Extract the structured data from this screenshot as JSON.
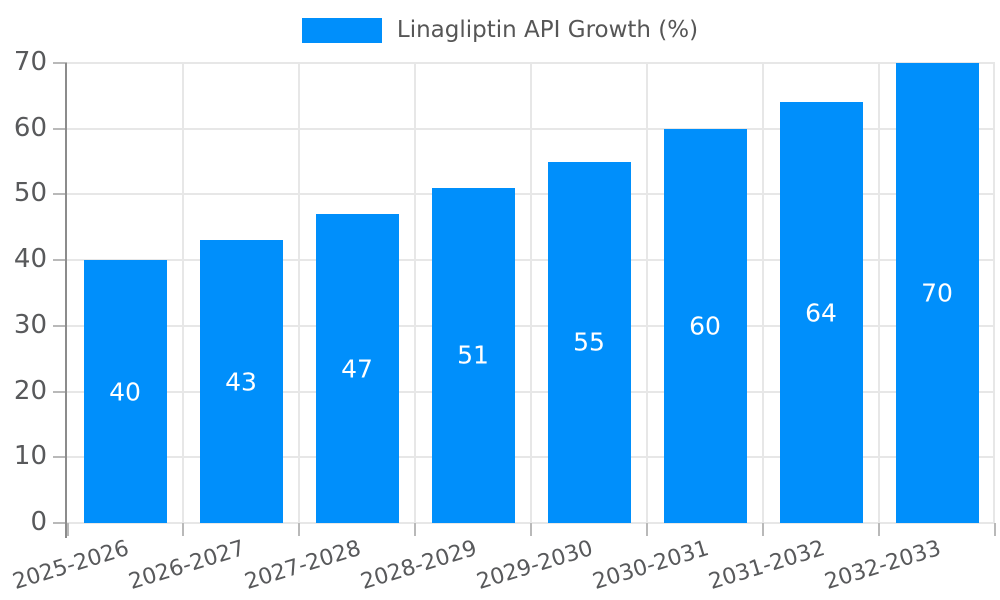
{
  "chart_data": {
    "type": "bar",
    "legend": "Linagliptin API Growth (%)",
    "legend_position": "top",
    "categories": [
      "2025-2026",
      "2026-2027",
      "2027-2028",
      "2028-2029",
      "2029-2030",
      "2030-2031",
      "2031-2032",
      "2032-2033"
    ],
    "values": [
      40,
      43,
      47,
      51,
      55,
      60,
      64,
      70
    ],
    "ylim": [
      0,
      70
    ],
    "yticks": [
      0,
      10,
      20,
      30,
      40,
      50,
      60,
      70
    ],
    "grid": true,
    "x_label_rotation_deg": -17,
    "colors": {
      "bar": "#008FFB",
      "grid": "#e7e7e7",
      "axis_line": "#8c8c8c",
      "tick": "#b9b9b9",
      "axis_label": "#58595b",
      "legend_text": "#565656",
      "value_label": "#ffffff",
      "background": "#ffffff"
    }
  }
}
